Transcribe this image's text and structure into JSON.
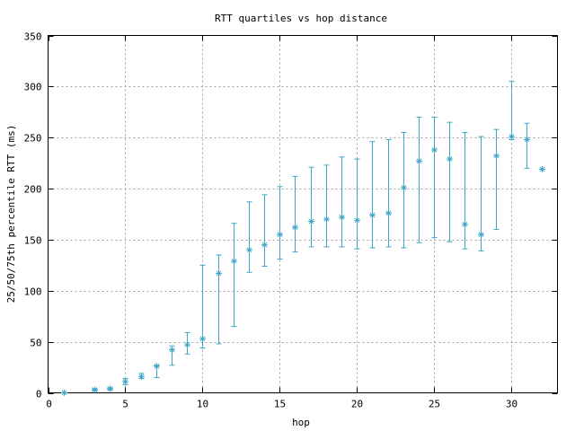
{
  "chart_data": {
    "type": "scatter",
    "title": "RTT quartiles vs hop distance",
    "xlabel": "hop",
    "ylabel": "25/50/75th percentile RTT (ms)",
    "xlim": [
      0,
      33
    ],
    "ylim": [
      0,
      350
    ],
    "xticks": [
      "0",
      "5",
      "10",
      "15",
      "20",
      "25",
      "30"
    ],
    "yticks": [
      "0",
      "50",
      "100",
      "150",
      "200",
      "250",
      "300",
      "350"
    ],
    "grid": true,
    "color": "#3ea6c9",
    "series": [
      {
        "points": [
          {
            "x": 1,
            "median": 0,
            "low": 0,
            "high": 0
          },
          {
            "x": 3,
            "median": 3,
            "low": 2,
            "high": 4
          },
          {
            "x": 4,
            "median": 4,
            "low": 3,
            "high": 5
          },
          {
            "x": 5,
            "median": 11,
            "low": 8,
            "high": 14
          },
          {
            "x": 6,
            "median": 16,
            "low": 14,
            "high": 19
          },
          {
            "x": 7,
            "median": 26,
            "low": 15,
            "high": 27
          },
          {
            "x": 8,
            "median": 42,
            "low": 27,
            "high": 46
          },
          {
            "x": 9,
            "median": 47,
            "low": 38,
            "high": 59
          },
          {
            "x": 10,
            "median": 53,
            "low": 44,
            "high": 125
          },
          {
            "x": 11,
            "median": 117,
            "low": 48,
            "high": 135
          },
          {
            "x": 12,
            "median": 129,
            "low": 65,
            "high": 166
          },
          {
            "x": 13,
            "median": 140,
            "low": 118,
            "high": 187
          },
          {
            "x": 14,
            "median": 145,
            "low": 124,
            "high": 194
          },
          {
            "x": 15,
            "median": 155,
            "low": 131,
            "high": 202
          },
          {
            "x": 16,
            "median": 162,
            "low": 138,
            "high": 212
          },
          {
            "x": 17,
            "median": 168,
            "low": 143,
            "high": 221
          },
          {
            "x": 18,
            "median": 170,
            "low": 143,
            "high": 223
          },
          {
            "x": 19,
            "median": 172,
            "low": 143,
            "high": 231
          },
          {
            "x": 20,
            "median": 169,
            "low": 141,
            "high": 229
          },
          {
            "x": 21,
            "median": 174,
            "low": 142,
            "high": 246
          },
          {
            "x": 22,
            "median": 176,
            "low": 143,
            "high": 248
          },
          {
            "x": 23,
            "median": 201,
            "low": 142,
            "high": 255
          },
          {
            "x": 24,
            "median": 227,
            "low": 147,
            "high": 270
          },
          {
            "x": 25,
            "median": 238,
            "low": 152,
            "high": 270
          },
          {
            "x": 26,
            "median": 229,
            "low": 148,
            "high": 265
          },
          {
            "x": 27,
            "median": 165,
            "low": 141,
            "high": 255
          },
          {
            "x": 28,
            "median": 155,
            "low": 139,
            "high": 251
          },
          {
            "x": 29,
            "median": 232,
            "low": 160,
            "high": 258
          },
          {
            "x": 30,
            "median": 251,
            "low": 248,
            "high": 305
          },
          {
            "x": 31,
            "median": 248,
            "low": 220,
            "high": 264
          },
          {
            "x": 32,
            "median": 219,
            "low": 219,
            "high": 219
          }
        ]
      }
    ]
  }
}
